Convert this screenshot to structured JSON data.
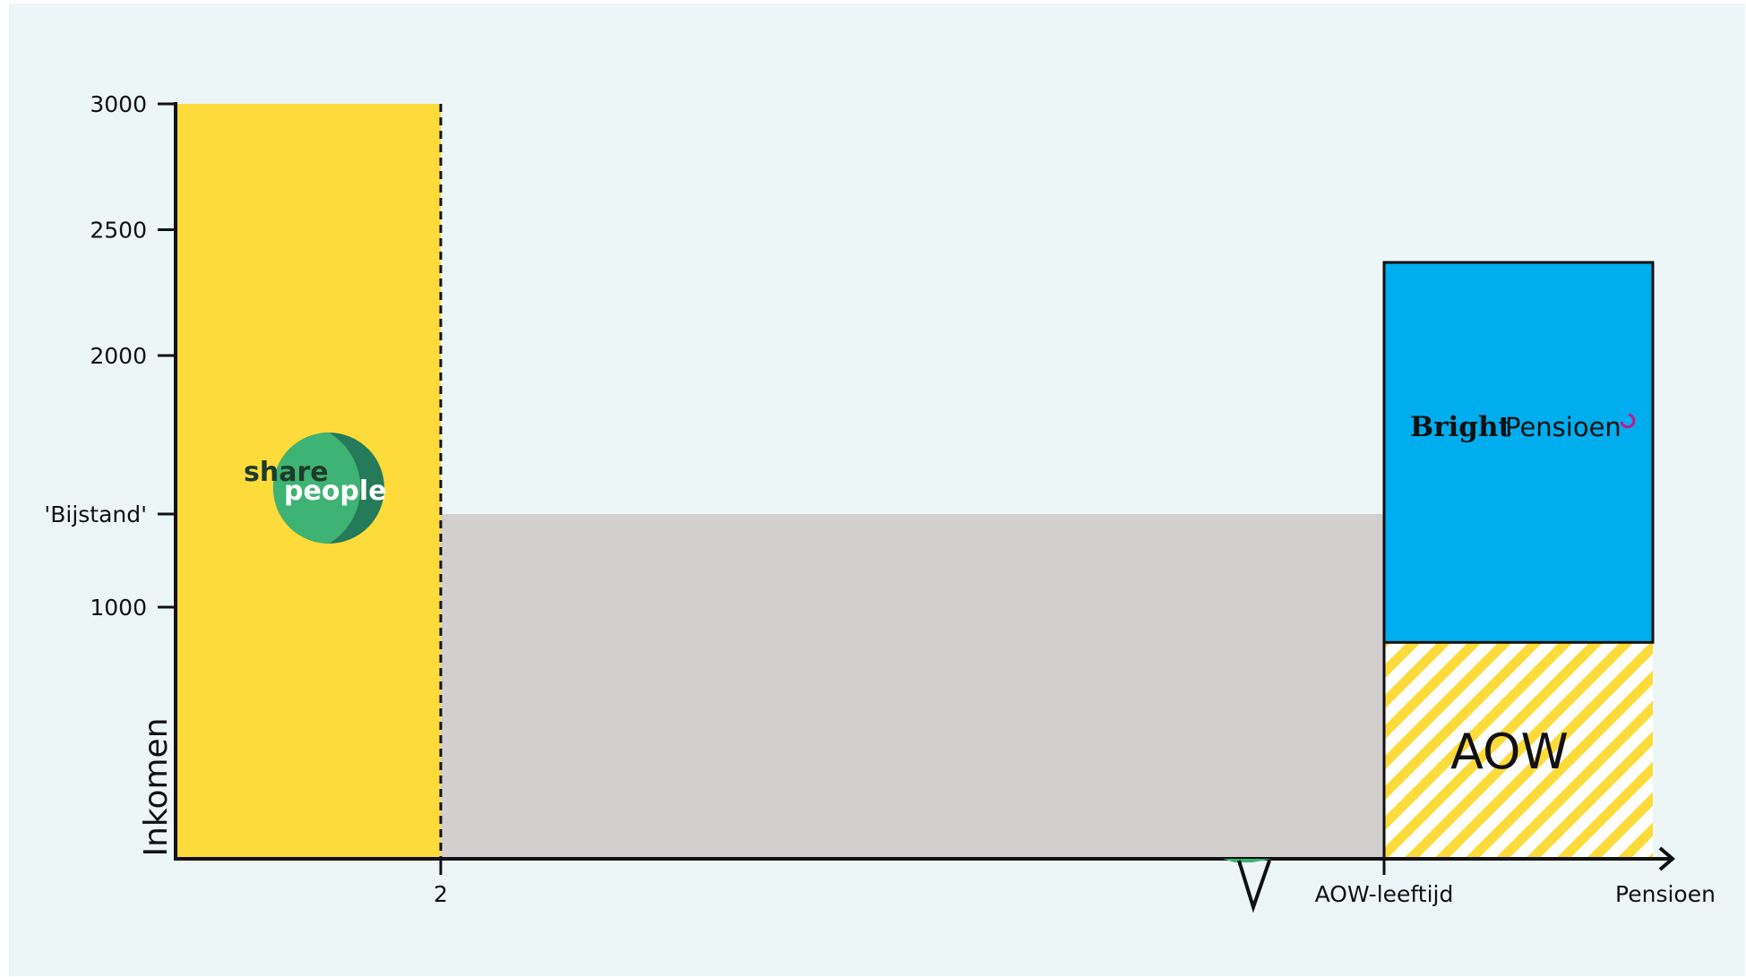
{
  "chart_data": {
    "type": "bar",
    "ylabel": "Inkomen",
    "ylim": [
      0,
      3000
    ],
    "y_ticks": [
      {
        "value": 3000,
        "label": "3000"
      },
      {
        "value": 2500,
        "label": "2500"
      },
      {
        "value": 2000,
        "label": "2000"
      },
      {
        "value": 1370,
        "label": "'Bijstand'"
      },
      {
        "value": 1000,
        "label": "1000"
      }
    ],
    "x_ticks": [
      {
        "key": "two",
        "label": "2"
      },
      {
        "key": "aow",
        "label": "AOW-leeftijd"
      },
      {
        "key": "end",
        "label": "Pensioen"
      }
    ],
    "segments": [
      {
        "key": "sharepeople",
        "from": "start",
        "to": "two",
        "y0": 0,
        "y1": 3000,
        "color": "#fddb3a",
        "logo": "sharepeople-logo"
      },
      {
        "key": "bijstand",
        "from": "two",
        "to": "aow",
        "y0": 0,
        "y1": 1370,
        "color": "#d4cfcf"
      },
      {
        "key": "aow",
        "from": "aow",
        "to": "end",
        "y0": 0,
        "y1": 860,
        "color": "#fddb3a",
        "pattern": "hatched",
        "label": "AOW"
      },
      {
        "key": "brightpensioen",
        "from": "aow",
        "to": "end",
        "y0": 860,
        "y1": 2370,
        "color": "#00aeef",
        "logo": "brightpensioen-logo"
      }
    ]
  },
  "logos": {
    "sharepeople": {
      "line1": "share",
      "line2": "people",
      "color_light": "#3eb374",
      "color_dark": "#247a59"
    },
    "brightpensioen": {
      "bold": "Bright",
      "regular": "Pensioen",
      "accent": "#c2188c"
    }
  }
}
